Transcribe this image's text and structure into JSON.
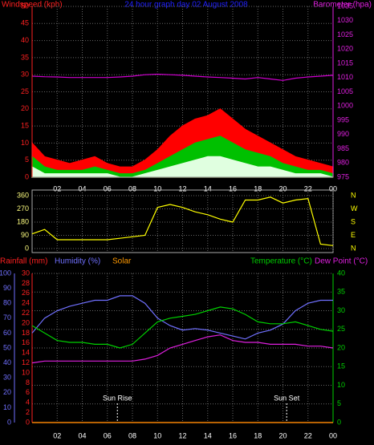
{
  "chart_data": [
    {
      "type": "line",
      "title": "24 hour graph day 02 August 2008",
      "ylabel": "Windspeed (kph)",
      "y2label": "Barometer (hpa)",
      "x": [
        0,
        1,
        2,
        3,
        4,
        5,
        6,
        7,
        8,
        9,
        10,
        11,
        12,
        13,
        14,
        15,
        16,
        17,
        18,
        19,
        20,
        21,
        22,
        23,
        24
      ],
      "xlim": [
        0,
        24
      ],
      "xticks": [
        {
          "value": 2,
          "label": "02"
        },
        {
          "value": 4,
          "label": "04"
        },
        {
          "value": 6,
          "label": "06"
        },
        {
          "value": 8,
          "label": "08"
        },
        10,
        12,
        14,
        16,
        18,
        20,
        22,
        {
          "value": 24,
          "label": "00"
        }
      ],
      "ylim": [
        0,
        50
      ],
      "yticks": [
        0,
        5,
        10,
        15,
        20,
        25,
        30,
        35,
        40,
        45,
        50
      ],
      "y2lim": [
        975,
        1035
      ],
      "y2ticks": [
        975,
        980,
        985,
        990,
        995,
        1000,
        1005,
        1010,
        1015,
        1020,
        1025,
        1030,
        1035
      ],
      "grid": true,
      "series": [
        {
          "color": "#ff0000",
          "fill": true,
          "values": [
            10,
            6,
            5,
            4,
            5,
            6,
            4,
            3,
            3,
            5,
            8,
            12,
            15,
            17,
            18,
            20,
            17,
            14,
            12,
            10,
            8,
            6,
            5,
            4,
            3
          ]
        },
        {
          "color": "#00c000",
          "fill": true,
          "values": [
            6,
            3,
            2,
            2,
            2,
            3,
            2,
            1,
            1,
            2,
            4,
            6,
            8,
            10,
            11,
            12,
            10,
            8,
            7,
            6,
            4,
            3,
            2,
            2,
            1
          ]
        },
        {
          "color": "#e0ffe0",
          "fill": true,
          "values": [
            3,
            1,
            1,
            1,
            1,
            1,
            1,
            0,
            0,
            1,
            2,
            3,
            4,
            5,
            6,
            6,
            5,
            4,
            3,
            3,
            2,
            1,
            1,
            1,
            0
          ]
        },
        {
          "color": "#d000d0",
          "axis": "y2",
          "values": [
            1010.5,
            1010.3,
            1010.2,
            1010,
            1010,
            1010,
            1010,
            1010.2,
            1010.5,
            1011,
            1011.2,
            1011,
            1010.8,
            1010.5,
            1010.2,
            1010,
            1009.8,
            1009.5,
            1010,
            1009.5,
            1009,
            1009.8,
            1010.2,
            1010.5,
            1010.8
          ]
        }
      ]
    },
    {
      "type": "line",
      "x": [
        0,
        1,
        2,
        3,
        4,
        5,
        6,
        7,
        8,
        9,
        10,
        11,
        12,
        13,
        14,
        15,
        16,
        17,
        18,
        19,
        20,
        21,
        22,
        23,
        24
      ],
      "xlim": [
        0,
        24
      ],
      "ylim": [
        0,
        360
      ],
      "yticks": [
        0,
        90,
        180,
        270,
        360
      ],
      "compass_ticks": [
        {
          "value": 0,
          "label": "N"
        },
        {
          "value": 90,
          "label": "E"
        },
        {
          "value": 180,
          "label": "S"
        },
        {
          "value": 270,
          "label": "W"
        },
        {
          "value": 360,
          "label": "N"
        }
      ],
      "series": [
        {
          "color": "#ffff00",
          "values": [
            100,
            130,
            60,
            60,
            60,
            60,
            60,
            70,
            80,
            90,
            280,
            300,
            280,
            250,
            230,
            200,
            180,
            330,
            330,
            350,
            310,
            330,
            340,
            30,
            20
          ]
        }
      ]
    },
    {
      "type": "line",
      "x": [
        0,
        1,
        2,
        3,
        4,
        5,
        6,
        7,
        8,
        9,
        10,
        11,
        12,
        13,
        14,
        15,
        16,
        17,
        18,
        19,
        20,
        21,
        22,
        23,
        24
      ],
      "xlim": [
        0,
        24
      ],
      "xticks": [
        {
          "value": 2,
          "label": "02"
        },
        {
          "value": 4,
          "label": "04"
        },
        {
          "value": 6,
          "label": "06"
        },
        {
          "value": 8,
          "label": "08"
        },
        10,
        12,
        14,
        16,
        18,
        20,
        22,
        {
          "value": 24,
          "label": "00"
        }
      ],
      "ylim": [
        0,
        100
      ],
      "yticks": [
        0,
        10,
        20,
        30,
        40,
        50,
        60,
        70,
        80,
        90,
        100
      ],
      "y3lim": [
        0,
        30
      ],
      "y3ticks": [
        0,
        2,
        4,
        6,
        8,
        10,
        12,
        14,
        16,
        18,
        20,
        22,
        24,
        26,
        28,
        30
      ],
      "y2lim": [
        0,
        40
      ],
      "y2ticks": [
        0,
        5,
        10,
        15,
        20,
        25,
        30,
        35,
        40
      ],
      "grid": true,
      "series": [
        {
          "name": "Rainfall (mm)",
          "color": "#ff2020",
          "axis": "y3",
          "values": [
            0,
            0,
            0,
            0,
            0,
            0,
            0,
            0,
            0,
            0,
            0,
            0,
            0,
            0,
            0,
            0,
            0,
            0,
            0,
            0,
            0,
            0,
            0,
            0,
            0
          ]
        },
        {
          "name": "Humidity (%)",
          "color": "#7070ff",
          "values": [
            60,
            70,
            75,
            78,
            80,
            82,
            82,
            85,
            85,
            80,
            70,
            65,
            62,
            63,
            62,
            60,
            58,
            56,
            60,
            62,
            66,
            75,
            80,
            82,
            82
          ]
        },
        {
          "name": "Solar",
          "color": "#ff9900",
          "axis": "y3",
          "values": [
            0,
            0,
            0,
            0,
            0,
            0,
            0,
            0,
            0,
            0,
            0,
            0,
            0,
            0,
            0,
            0,
            0,
            0,
            0,
            0,
            0,
            0,
            0,
            0,
            0
          ]
        },
        {
          "name": "Temperature (°C)",
          "color": "#00d000",
          "axis": "y2",
          "values": [
            26,
            24,
            22,
            21.5,
            21.5,
            21,
            21,
            20,
            21,
            24,
            27,
            28,
            28.5,
            29,
            30,
            31,
            30.5,
            29,
            27,
            26.5,
            26.5,
            27,
            26,
            25,
            24.5
          ]
        },
        {
          "name": "Dew Point (°C)",
          "color": "#e020e0",
          "axis": "y2",
          "values": [
            16,
            16.5,
            16.5,
            16.5,
            16.5,
            16.5,
            16.5,
            16.5,
            16.5,
            17,
            18,
            20,
            21,
            22,
            23,
            23.5,
            22,
            21.5,
            21.5,
            21,
            21,
            21,
            20.5,
            20.5,
            20
          ]
        }
      ],
      "annotations": [
        {
          "text": "Sun Rise",
          "x": 6.8
        },
        {
          "text": "Sun Set",
          "x": 20.3
        }
      ]
    }
  ]
}
